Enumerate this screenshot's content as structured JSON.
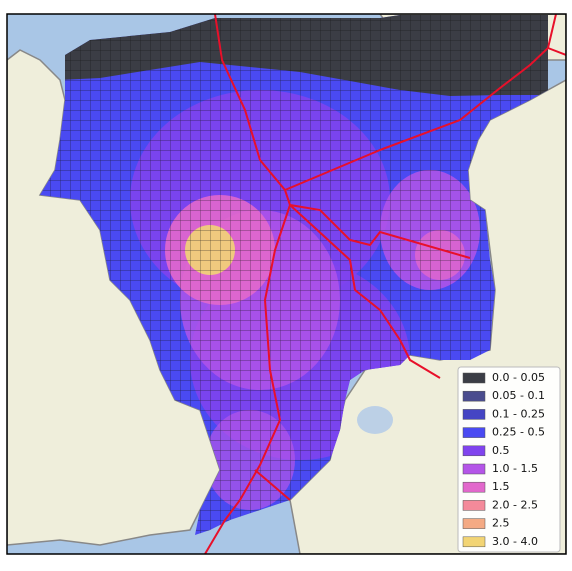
{
  "legend": {
    "items": [
      {
        "label": "0.0 - 0.05",
        "color": "#3b3d45"
      },
      {
        "label": "0.05 - 0.1",
        "color": "#4a4c8e"
      },
      {
        "label": "0.1 - 0.25",
        "color": "#4545c4"
      },
      {
        "label": "0.25 - 0.5",
        "color": "#4a4af2"
      },
      {
        "label": "0.5",
        "color": "#8044ee"
      },
      {
        "label": "1.0 - 1.5",
        "color": "#b455e8"
      },
      {
        "label": "1.5",
        "color": "#e268cc"
      },
      {
        "label": "2.0 - 2.5",
        "color": "#f48a9a"
      },
      {
        "label": "2.5",
        "color": "#f4aa84"
      },
      {
        "label": "3.0 - 4.0",
        "color": "#f2d474"
      }
    ]
  }
}
